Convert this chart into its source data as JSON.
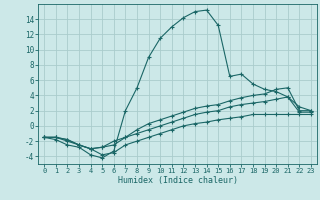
{
  "xlabel": "Humidex (Indice chaleur)",
  "bg_color": "#cce8e8",
  "grid_color": "#aacccc",
  "line_color": "#1a6666",
  "xlim": [
    -0.5,
    23.5
  ],
  "ylim": [
    -5.0,
    16.0
  ],
  "yticks": [
    -4,
    -2,
    0,
    2,
    4,
    6,
    8,
    10,
    12,
    14
  ],
  "xticks": [
    0,
    1,
    2,
    3,
    4,
    5,
    6,
    7,
    8,
    9,
    10,
    11,
    12,
    13,
    14,
    15,
    16,
    17,
    18,
    19,
    20,
    21,
    22,
    23
  ],
  "series": [
    {
      "x": [
        0,
        1,
        2,
        3,
        4,
        5,
        6,
        7,
        8,
        9,
        10,
        11,
        12,
        13,
        14,
        15,
        16,
        17,
        18,
        19,
        20,
        21,
        22,
        23
      ],
      "y": [
        -1.5,
        -1.8,
        -2.5,
        -2.8,
        -3.8,
        -4.2,
        -3.3,
        2.0,
        5.0,
        9.0,
        11.5,
        13.0,
        14.2,
        15.0,
        15.2,
        13.2,
        6.5,
        6.8,
        5.5,
        4.8,
        4.5,
        3.8,
        2.5,
        2.0
      ]
    },
    {
      "x": [
        0,
        1,
        2,
        3,
        4,
        5,
        6,
        7,
        8,
        9,
        10,
        11,
        12,
        13,
        14,
        15,
        16,
        17,
        18,
        19,
        20,
        21,
        22,
        23
      ],
      "y": [
        -1.5,
        -1.5,
        -1.8,
        -2.5,
        -3.0,
        -2.8,
        -2.5,
        -1.5,
        -0.5,
        0.3,
        0.8,
        1.3,
        1.8,
        2.3,
        2.6,
        2.8,
        3.3,
        3.7,
        4.0,
        4.2,
        4.8,
        5.0,
        2.0,
        2.0
      ]
    },
    {
      "x": [
        0,
        1,
        2,
        3,
        4,
        5,
        6,
        7,
        8,
        9,
        10,
        11,
        12,
        13,
        14,
        15,
        16,
        17,
        18,
        19,
        20,
        21,
        22,
        23
      ],
      "y": [
        -1.5,
        -1.5,
        -1.8,
        -2.5,
        -3.0,
        -2.8,
        -2.0,
        -1.5,
        -1.0,
        -0.5,
        0.0,
        0.5,
        1.0,
        1.5,
        1.8,
        2.0,
        2.5,
        2.8,
        3.0,
        3.2,
        3.5,
        3.8,
        1.8,
        1.8
      ]
    },
    {
      "x": [
        0,
        1,
        2,
        3,
        4,
        5,
        6,
        7,
        8,
        9,
        10,
        11,
        12,
        13,
        14,
        15,
        16,
        17,
        18,
        19,
        20,
        21,
        22,
        23
      ],
      "y": [
        -1.5,
        -1.5,
        -2.0,
        -2.5,
        -3.0,
        -3.8,
        -3.5,
        -2.5,
        -2.0,
        -1.5,
        -1.0,
        -0.5,
        0.0,
        0.3,
        0.5,
        0.8,
        1.0,
        1.2,
        1.5,
        1.5,
        1.5,
        1.5,
        1.5,
        1.5
      ]
    }
  ]
}
